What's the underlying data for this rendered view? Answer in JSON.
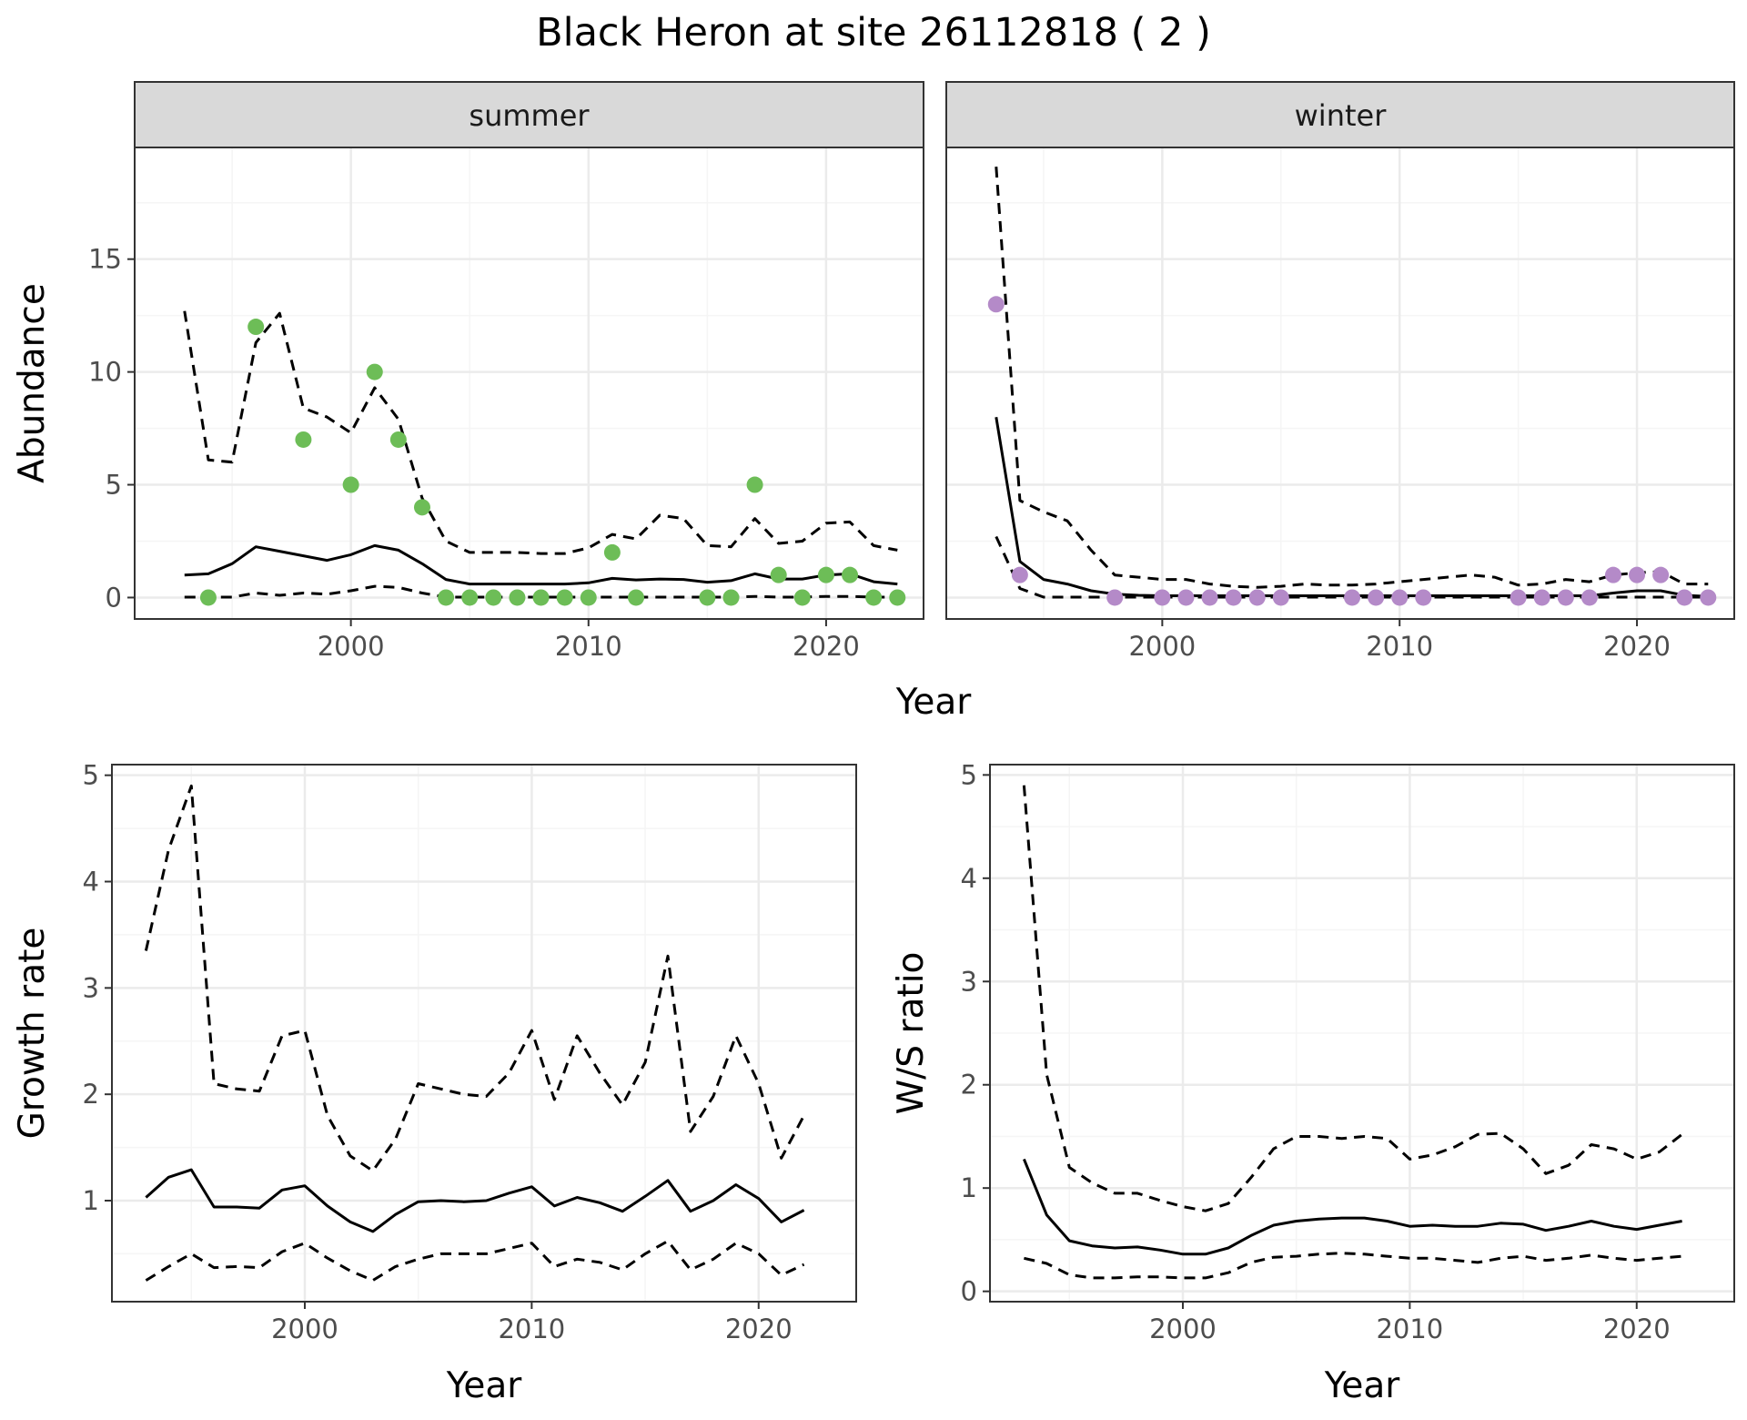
{
  "figure_title": "Black Heron at site 26112818 ( 2 )",
  "colors": {
    "summer_points": "#6dbd57",
    "winter_points": "#b48ac8",
    "lines": "#000000",
    "panel_border": "#333333",
    "grid_major": "#ebebeb",
    "grid_minor": "#f5f5f5",
    "strip_fill": "#d9d9d9"
  },
  "chart_data": [
    {
      "type": "line",
      "panel": "summer",
      "strip_label": "summer",
      "ylabel": "Abundance",
      "xlabel": "Year",
      "xlim": [
        1990.9,
        2024.1
      ],
      "ylim": [
        -0.95,
        19.95
      ],
      "x_ticks": [
        2000,
        2010,
        2020
      ],
      "y_ticks": [
        0,
        5,
        10,
        15
      ],
      "legend": "none",
      "grid": true,
      "x": [
        1993,
        1994,
        1995,
        1996,
        1997,
        1998,
        1999,
        2000,
        2001,
        2002,
        2003,
        2004,
        2005,
        2006,
        2007,
        2008,
        2009,
        2010,
        2011,
        2012,
        2013,
        2014,
        2015,
        2016,
        2017,
        2018,
        2019,
        2020,
        2021,
        2022,
        2023
      ],
      "series": [
        {
          "role": "estimate",
          "style": "solid",
          "values": [
            1.0,
            1.05,
            1.5,
            2.25,
            2.05,
            1.85,
            1.65,
            1.9,
            2.3,
            2.1,
            1.5,
            0.8,
            0.6,
            0.6,
            0.6,
            0.6,
            0.6,
            0.65,
            0.85,
            0.78,
            0.82,
            0.8,
            0.68,
            0.75,
            1.05,
            0.82,
            0.82,
            1.0,
            1.05,
            0.7,
            0.6
          ]
        },
        {
          "role": "upper",
          "style": "dashed",
          "values": [
            12.7,
            6.1,
            6.0,
            11.3,
            12.6,
            8.4,
            8.0,
            7.3,
            9.3,
            7.9,
            4.4,
            2.5,
            2.0,
            2.0,
            2.0,
            1.95,
            1.95,
            2.2,
            2.8,
            2.6,
            3.65,
            3.5,
            2.3,
            2.25,
            3.5,
            2.4,
            2.5,
            3.3,
            3.35,
            2.3,
            2.1
          ]
        },
        {
          "role": "lower",
          "style": "dashed",
          "values": [
            0.02,
            0.02,
            0.02,
            0.2,
            0.1,
            0.2,
            0.15,
            0.3,
            0.5,
            0.45,
            0.2,
            0.02,
            0.02,
            0.02,
            0.02,
            0.02,
            0.02,
            0.02,
            0.02,
            0.02,
            0.02,
            0.02,
            0.02,
            0.02,
            0.05,
            0.02,
            0.02,
            0.05,
            0.05,
            0.02,
            0.02
          ]
        },
        {
          "role": "observed",
          "style": "points",
          "points": [
            [
              1994,
              0
            ],
            [
              1996,
              12
            ],
            [
              1998,
              7
            ],
            [
              2000,
              5
            ],
            [
              2001,
              10
            ],
            [
              2002,
              7
            ],
            [
              2003,
              4
            ],
            [
              2004,
              0
            ],
            [
              2005,
              0
            ],
            [
              2006,
              0
            ],
            [
              2007,
              0
            ],
            [
              2008,
              0
            ],
            [
              2009,
              0
            ],
            [
              2010,
              0
            ],
            [
              2011,
              2
            ],
            [
              2012,
              0
            ],
            [
              2015,
              0
            ],
            [
              2016,
              0
            ],
            [
              2017,
              5
            ],
            [
              2018,
              1
            ],
            [
              2019,
              0
            ],
            [
              2020,
              1
            ],
            [
              2021,
              1
            ],
            [
              2022,
              0
            ],
            [
              2023,
              0
            ]
          ]
        }
      ]
    },
    {
      "type": "line",
      "panel": "winter",
      "strip_label": "winter",
      "ylabel": "",
      "xlabel": "Year",
      "xlim": [
        1990.9,
        2024.1
      ],
      "ylim": [
        -0.95,
        19.95
      ],
      "x_ticks": [
        2000,
        2010,
        2020
      ],
      "y_ticks": [
        0,
        5,
        10,
        15
      ],
      "legend": "none",
      "grid": true,
      "x": [
        1993,
        1994,
        1995,
        1996,
        1997,
        1998,
        1999,
        2000,
        2001,
        2002,
        2003,
        2004,
        2005,
        2006,
        2007,
        2008,
        2009,
        2010,
        2011,
        2012,
        2013,
        2014,
        2015,
        2016,
        2017,
        2018,
        2019,
        2020,
        2021,
        2022,
        2023
      ],
      "series": [
        {
          "role": "estimate",
          "style": "solid",
          "values": [
            8.0,
            1.6,
            0.8,
            0.6,
            0.3,
            0.15,
            0.1,
            0.08,
            0.08,
            0.08,
            0.08,
            0.08,
            0.08,
            0.08,
            0.08,
            0.08,
            0.08,
            0.08,
            0.08,
            0.08,
            0.08,
            0.08,
            0.08,
            0.08,
            0.08,
            0.08,
            0.2,
            0.3,
            0.3,
            0.1,
            0.05
          ]
        },
        {
          "role": "upper",
          "style": "dashed",
          "values": [
            19.1,
            4.3,
            3.8,
            3.4,
            2.1,
            1.0,
            0.9,
            0.8,
            0.8,
            0.6,
            0.5,
            0.45,
            0.5,
            0.6,
            0.55,
            0.55,
            0.6,
            0.7,
            0.8,
            0.9,
            1.0,
            0.9,
            0.55,
            0.6,
            0.8,
            0.7,
            1.0,
            1.1,
            1.15,
            0.6,
            0.6
          ]
        },
        {
          "role": "lower",
          "style": "dashed",
          "values": [
            2.7,
            0.4,
            0.02,
            0.02,
            0.02,
            0.02,
            0.02,
            0.02,
            0.02,
            0.02,
            0.02,
            0.02,
            0.02,
            0.02,
            0.02,
            0.02,
            0.02,
            0.02,
            0.02,
            0.02,
            0.02,
            0.02,
            0.02,
            0.02,
            0.02,
            0.02,
            0.02,
            0.02,
            0.02,
            0.02,
            0.02
          ]
        },
        {
          "role": "observed",
          "style": "points",
          "points": [
            [
              1993,
              13
            ],
            [
              1994,
              1
            ],
            [
              1998,
              0
            ],
            [
              2000,
              0
            ],
            [
              2001,
              0
            ],
            [
              2002,
              0
            ],
            [
              2003,
              0
            ],
            [
              2004,
              0
            ],
            [
              2005,
              0
            ],
            [
              2008,
              0
            ],
            [
              2009,
              0
            ],
            [
              2010,
              0
            ],
            [
              2011,
              0
            ],
            [
              2015,
              0
            ],
            [
              2016,
              0
            ],
            [
              2017,
              0
            ],
            [
              2018,
              0
            ],
            [
              2019,
              1
            ],
            [
              2020,
              1
            ],
            [
              2021,
              1
            ],
            [
              2022,
              0
            ],
            [
              2023,
              0
            ]
          ]
        }
      ]
    },
    {
      "type": "line",
      "panel": "growth",
      "ylabel": "Growth rate",
      "xlabel": "Year",
      "xlim": [
        1991.5,
        2024.3
      ],
      "ylim": [
        0.05,
        5.1
      ],
      "x_ticks": [
        2000,
        2010,
        2020
      ],
      "y_ticks": [
        1,
        2,
        3,
        4,
        5
      ],
      "legend": "none",
      "grid": true,
      "x": [
        1993,
        1994,
        1995,
        1996,
        1997,
        1998,
        1999,
        2000,
        2001,
        2002,
        2003,
        2004,
        2005,
        2006,
        2007,
        2008,
        2009,
        2010,
        2011,
        2012,
        2013,
        2014,
        2015,
        2016,
        2017,
        2018,
        2019,
        2020,
        2021,
        2022
      ],
      "series": [
        {
          "role": "estimate",
          "style": "solid",
          "values": [
            1.03,
            1.22,
            1.29,
            0.94,
            0.94,
            0.93,
            1.1,
            1.14,
            0.95,
            0.8,
            0.71,
            0.87,
            0.99,
            1.0,
            0.99,
            1.0,
            1.07,
            1.13,
            0.95,
            1.03,
            0.98,
            0.9,
            1.04,
            1.19,
            0.9,
            1.0,
            1.15,
            1.02,
            0.8,
            0.91
          ]
        },
        {
          "role": "upper",
          "style": "dashed",
          "values": [
            3.35,
            4.3,
            4.9,
            2.1,
            2.05,
            2.03,
            2.55,
            2.6,
            1.8,
            1.42,
            1.28,
            1.58,
            2.1,
            2.05,
            2.0,
            1.98,
            2.2,
            2.6,
            1.95,
            2.55,
            2.2,
            1.9,
            2.3,
            3.3,
            1.65,
            1.98,
            2.55,
            2.1,
            1.4,
            1.8
          ]
        },
        {
          "role": "lower",
          "style": "dashed",
          "values": [
            0.25,
            0.38,
            0.5,
            0.37,
            0.38,
            0.37,
            0.52,
            0.6,
            0.46,
            0.34,
            0.25,
            0.38,
            0.45,
            0.5,
            0.5,
            0.5,
            0.55,
            0.6,
            0.38,
            0.45,
            0.42,
            0.35,
            0.5,
            0.62,
            0.35,
            0.45,
            0.6,
            0.5,
            0.3,
            0.4
          ]
        }
      ]
    },
    {
      "type": "line",
      "panel": "ws_ratio",
      "ylabel": "W/S ratio",
      "xlabel": "Year",
      "xlim": [
        1991.5,
        2024.3
      ],
      "ylim": [
        -0.1,
        5.1
      ],
      "x_ticks": [
        2000,
        2010,
        2020
      ],
      "y_ticks": [
        0,
        1,
        2,
        3,
        4,
        5
      ],
      "legend": "none",
      "grid": true,
      "x": [
        1993,
        1994,
        1995,
        1996,
        1997,
        1998,
        1999,
        2000,
        2001,
        2002,
        2003,
        2004,
        2005,
        2006,
        2007,
        2008,
        2009,
        2010,
        2011,
        2012,
        2013,
        2014,
        2015,
        2016,
        2017,
        2018,
        2019,
        2020,
        2021,
        2022
      ],
      "series": [
        {
          "role": "estimate",
          "style": "solid",
          "values": [
            1.28,
            0.74,
            0.49,
            0.44,
            0.42,
            0.43,
            0.4,
            0.36,
            0.36,
            0.42,
            0.54,
            0.64,
            0.68,
            0.7,
            0.71,
            0.71,
            0.68,
            0.63,
            0.64,
            0.63,
            0.63,
            0.66,
            0.65,
            0.59,
            0.63,
            0.68,
            0.63,
            0.6,
            0.64,
            0.68
          ]
        },
        {
          "role": "upper",
          "style": "dashed",
          "values": [
            4.9,
            2.1,
            1.2,
            1.05,
            0.95,
            0.95,
            0.88,
            0.82,
            0.78,
            0.85,
            1.1,
            1.38,
            1.5,
            1.5,
            1.48,
            1.5,
            1.48,
            1.28,
            1.32,
            1.4,
            1.52,
            1.53,
            1.38,
            1.14,
            1.22,
            1.42,
            1.38,
            1.28,
            1.35,
            1.52
          ]
        },
        {
          "role": "lower",
          "style": "dashed",
          "values": [
            0.32,
            0.27,
            0.16,
            0.13,
            0.13,
            0.14,
            0.14,
            0.13,
            0.13,
            0.18,
            0.28,
            0.33,
            0.34,
            0.36,
            0.37,
            0.36,
            0.34,
            0.32,
            0.32,
            0.3,
            0.28,
            0.32,
            0.34,
            0.3,
            0.32,
            0.35,
            0.32,
            0.3,
            0.32,
            0.34
          ]
        }
      ]
    }
  ]
}
